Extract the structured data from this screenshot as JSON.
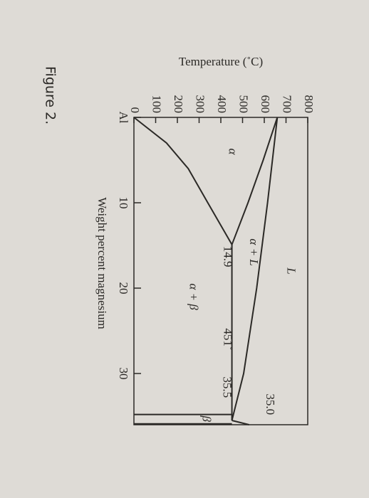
{
  "chart_data": {
    "type": "line",
    "caption": "Figure 2.",
    "xlabel": "Weight percent magnesium",
    "ylabel": "Temperature (˚C)",
    "xlim": [
      0,
      36
    ],
    "ylim": [
      0,
      800
    ],
    "xticks": [
      {
        "value": 0,
        "label": "Al"
      },
      10,
      20,
      30
    ],
    "yticks": [
      0,
      100,
      200,
      300,
      400,
      500,
      600,
      700,
      800
    ],
    "series": [
      {
        "color": "#2b2926",
        "x": [
          0,
          10,
          20,
          30,
          35.5
        ],
        "values": [
          660,
          615,
          565,
          505,
          451
        ]
      },
      {
        "color": "#2b2926",
        "x": [
          0,
          5,
          10,
          14.9
        ],
        "values": [
          660,
          595,
          525,
          451
        ]
      },
      {
        "color": "#2b2926",
        "x": [
          0,
          3,
          6,
          10,
          14.9
        ],
        "values": [
          0,
          150,
          250,
          340,
          451
        ]
      },
      {
        "color": "#2b2926",
        "x": [
          14.9,
          35.5
        ],
        "values": [
          451,
          451
        ]
      },
      {
        "color": "#2b2926",
        "x": [
          34.8,
          34.8
        ],
        "values": [
          0,
          451
        ]
      },
      {
        "color": "#2b2926",
        "x": [
          35.9,
          35.9
        ],
        "values": [
          0,
          451
        ]
      },
      {
        "color": "#2b2926",
        "x": [
          35.5,
          36
        ],
        "values": [
          451,
          530
        ]
      }
    ],
    "annotations": [
      "L",
      "α + L",
      "α",
      "14.9",
      "α + β",
      "451˚",
      "35.5",
      "35.0",
      "β"
    ]
  }
}
